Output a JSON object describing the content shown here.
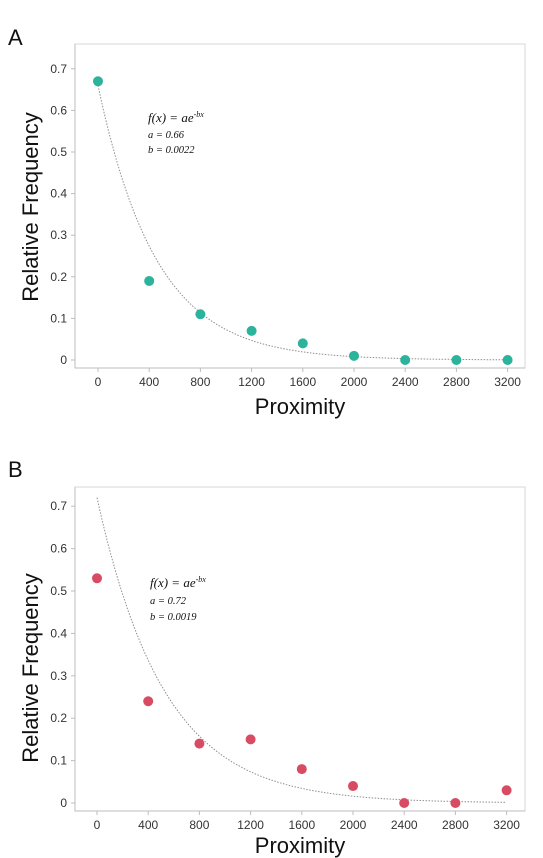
{
  "chart_data": [
    {
      "type": "scatter",
      "panel_label": "A",
      "xlabel": "Proximity",
      "ylabel": "Relative Frequency",
      "xlim": [
        0,
        3200
      ],
      "ylim": [
        0,
        0.7
      ],
      "xticks": [
        0,
        400,
        800,
        1200,
        1600,
        2000,
        2400,
        2800,
        3200
      ],
      "yticks": [
        0,
        0.1,
        0.2,
        0.3,
        0.4,
        0.5,
        0.6,
        0.7
      ],
      "marker_color": "#2bb39b",
      "x": [
        0,
        400,
        800,
        1200,
        1600,
        2000,
        2400,
        2800,
        3200
      ],
      "y": [
        0.67,
        0.19,
        0.11,
        0.07,
        0.04,
        0.01,
        0.0,
        0.0,
        0.0
      ],
      "fit": {
        "a": 0.66,
        "b": 0.0022
      },
      "equation": {
        "lhs": "f(x) = ae",
        "exponent": "-bx",
        "a_line": "a = 0.66",
        "b_line": "b = 0.0022"
      },
      "grid": false
    },
    {
      "type": "scatter",
      "panel_label": "B",
      "xlabel": "Proximity",
      "ylabel": "Relative Frequency",
      "xlim": [
        0,
        3200
      ],
      "ylim": [
        0,
        0.7
      ],
      "xticks": [
        0,
        400,
        800,
        1200,
        1600,
        2000,
        2400,
        2800,
        3200
      ],
      "yticks": [
        0,
        0.1,
        0.2,
        0.3,
        0.4,
        0.5,
        0.6,
        0.7
      ],
      "marker_color": "#d84c63",
      "x": [
        0,
        400,
        800,
        1200,
        1600,
        2000,
        2400,
        2800,
        3200
      ],
      "y": [
        0.53,
        0.24,
        0.14,
        0.15,
        0.08,
        0.04,
        0.0,
        0.0,
        0.03
      ],
      "fit": {
        "a": 0.72,
        "b": 0.0019
      },
      "equation": {
        "lhs": "f(x) = ae",
        "exponent": "-bx",
        "a_line": "a = 0.72",
        "b_line": "b = 0.0019"
      },
      "grid": false
    }
  ]
}
